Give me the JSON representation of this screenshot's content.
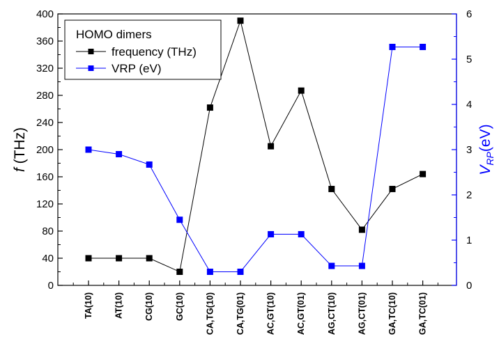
{
  "chart_data": {
    "type": "line",
    "categories": [
      "TA(10)",
      "AT(10)",
      "CG(10)",
      "GC(10)",
      "CA,TG(10)",
      "CA,TG(01)",
      "AC,GT(10)",
      "AC,GT(01)",
      "AG,CT(10)",
      "AG,CT(01)",
      "GA,TC(10)",
      "GA,TC(01)"
    ],
    "legend_title": "HOMO dimers",
    "legend_position": "top-left",
    "grid": false,
    "left_axis": {
      "label_symbol": "f",
      "label_rest": " (THz)",
      "ylim": [
        0,
        400
      ],
      "ticks": [
        0,
        40,
        80,
        120,
        160,
        200,
        240,
        280,
        320,
        360,
        400
      ],
      "color": "#000000"
    },
    "right_axis": {
      "label_main": "V",
      "label_sub": "RP",
      "label_rest": "(eV)",
      "ylim": [
        0,
        6
      ],
      "ticks": [
        0,
        1,
        2,
        3,
        4,
        5,
        6
      ],
      "color": "#0000ff"
    },
    "series": [
      {
        "name": "frequency (THz)",
        "axis": "left",
        "color": "#000000",
        "values": [
          40,
          40,
          40,
          20,
          262,
          390,
          205,
          287,
          142,
          82,
          142,
          164
        ]
      },
      {
        "name": "VRP (eV)",
        "axis": "right",
        "color": "#0000ff",
        "values": [
          3.0,
          2.9,
          2.67,
          1.45,
          0.3,
          0.3,
          1.13,
          1.13,
          0.43,
          0.43,
          5.27,
          5.27
        ]
      }
    ]
  }
}
